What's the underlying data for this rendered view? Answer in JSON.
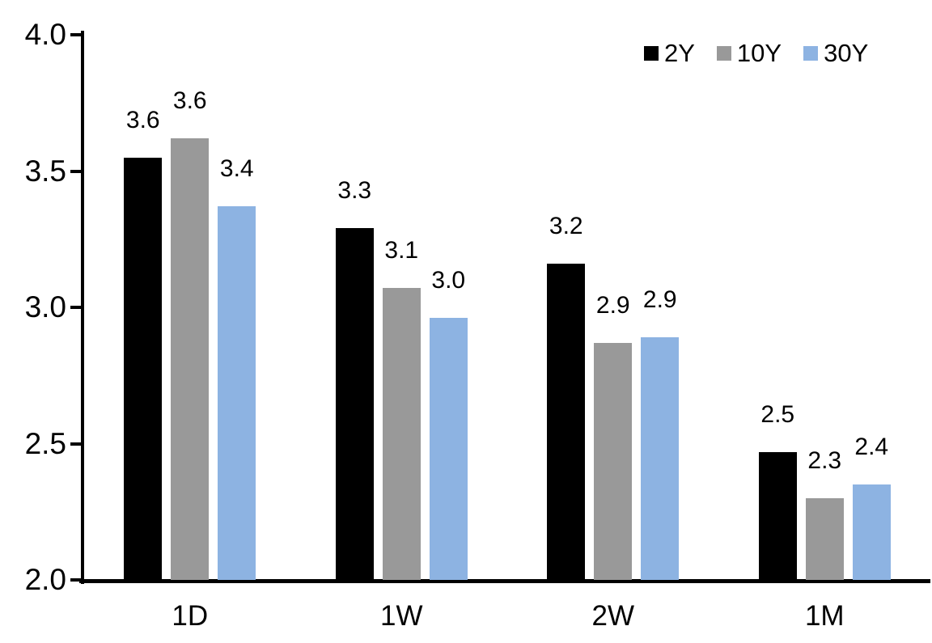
{
  "chart_data": {
    "type": "bar",
    "title": "",
    "categories": [
      "1D",
      "1W",
      "2W",
      "1M"
    ],
    "series": [
      {
        "name": "2Y",
        "color": "#000000",
        "values": [
          3.55,
          3.29,
          3.16,
          2.47
        ],
        "labels": [
          "3.6",
          "3.3",
          "3.2",
          "2.5"
        ]
      },
      {
        "name": "10Y",
        "color": "#999999",
        "values": [
          3.62,
          3.07,
          2.87,
          2.3
        ],
        "labels": [
          "3.6",
          "3.1",
          "2.9",
          "2.3"
        ]
      },
      {
        "name": "30Y",
        "color": "#8DB3E2",
        "values": [
          3.37,
          2.96,
          2.89,
          2.35
        ],
        "labels": [
          "3.4",
          "3.0",
          "2.9",
          "2.4"
        ]
      }
    ],
    "xlabel": "",
    "ylabel": "",
    "ylim": [
      2.0,
      4.0
    ],
    "yticks": [
      "2.0",
      "2.5",
      "3.0",
      "3.5",
      "4.0"
    ],
    "grid": false,
    "legend_position": "top-right",
    "axis_color": "#000000",
    "background": "#ffffff"
  }
}
